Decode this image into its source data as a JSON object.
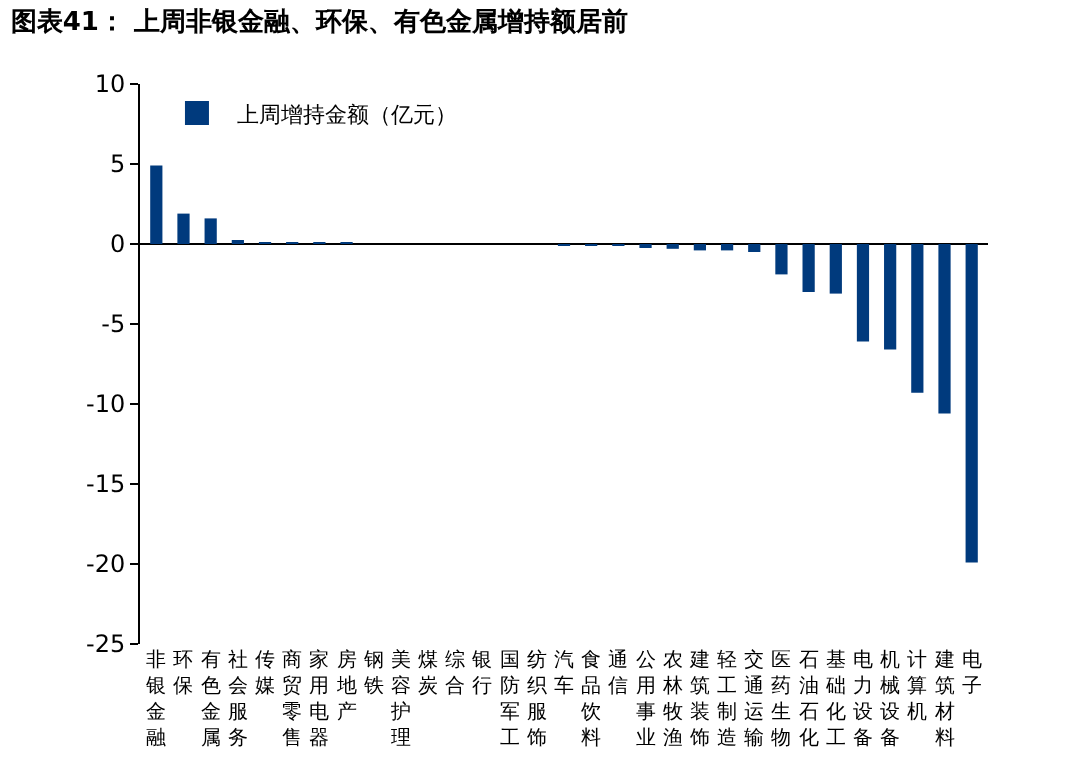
{
  "chart_data": {
    "type": "bar",
    "title": "图表41： 上周非银金融、环保、有色金属增持额居前",
    "categories": [
      "非银金融",
      "环保",
      "有色金属",
      "社会服务",
      "传媒",
      "商贸零售",
      "家用电器",
      "房地产",
      "钢铁",
      "美容护理",
      "煤炭",
      "综合",
      "银行",
      "国防军工",
      "纺织服饰",
      "汽车",
      "食品饮料",
      "通信",
      "公用事业",
      "农林牧渔",
      "建筑装饰",
      "轻工制造",
      "交通运输",
      "医药生物",
      "石油石化",
      "基础化工",
      "电力设备",
      "机械设备",
      "计算机",
      "建筑材料",
      "电子"
    ],
    "series": [
      {
        "name": "上周增持金额（亿元）",
        "color": "#003a7d",
        "values": [
          4.9,
          1.9,
          1.6,
          0.2,
          0.1,
          0.1,
          0.1,
          0.1,
          0,
          0,
          0,
          0,
          0,
          0,
          0,
          -0.1,
          -0.1,
          -0.1,
          -0.2,
          -0.3,
          -0.4,
          -0.4,
          -0.5,
          -1.9,
          -3.0,
          -3.1,
          -6.1,
          -6.6,
          -9.3,
          -10.6,
          -19.9
        ]
      }
    ],
    "ylim": [
      -25,
      10
    ],
    "yticks": [
      -25,
      -20,
      -15,
      -10,
      -5,
      0,
      5,
      10
    ],
    "legend": "top left"
  }
}
